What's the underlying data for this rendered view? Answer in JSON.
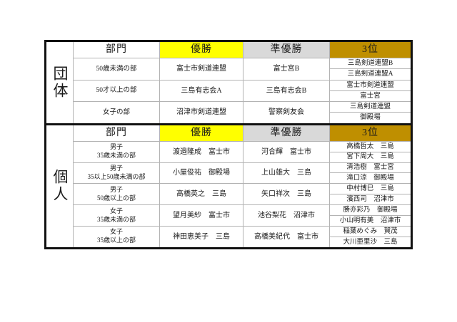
{
  "colors": {
    "winner_header_bg": "#ffff00",
    "runner_up_header_bg": "#d9d9d9",
    "third_header_bg": "#bf8f00",
    "grid_line": "#b3b3b3",
    "outer_border": "#111111",
    "page_bg": "#ffffff"
  },
  "headers": {
    "division": "部門",
    "winner": "優勝",
    "runner_up": "準優勝",
    "third": "3位"
  },
  "sections": {
    "team": {
      "label": "団体",
      "rows": [
        {
          "division": "50歳未満の部",
          "winner": "富士市剣道連盟",
          "runner_up": "富士宮B",
          "third": [
            "三島剣道連盟B",
            "三島剣道連盟A"
          ]
        },
        {
          "division": "50才以上の部",
          "winner": "三島有志会A",
          "runner_up": "三島有志会B",
          "third": [
            "富士市剣道連盟",
            "富士宮"
          ]
        },
        {
          "division": "女子の部",
          "winner": "沼津市剣道連盟",
          "runner_up": "警察剣友会",
          "third": [
            "三島剣道連盟",
            "御殿場"
          ]
        }
      ]
    },
    "individual": {
      "label": "個人",
      "rows": [
        {
          "division_line1": "男子",
          "division_line2": "35歳未満の部",
          "winner": "渡邉隆成　富士市",
          "runner_up": "河合輝　富士市",
          "third": [
            "高橋哲太　三島",
            "宮下周大　三島"
          ]
        },
        {
          "division_line1": "男子",
          "division_line2": "35以上50歳未満の部",
          "winner": "小屋俊祐　御殿場",
          "runner_up": "上山雄大　三島",
          "third": [
            "清浩樹　富士宮",
            "滝口涼　御殿場"
          ]
        },
        {
          "division_line1": "男子",
          "division_line2": "50歳以上の部",
          "winner": "高橋英之　三島",
          "runner_up": "矢口祥次　三島",
          "third": [
            "中村博巳　三島",
            "濱西司　沼津市"
          ]
        },
        {
          "division_line1": "女子",
          "division_line2": "35歳未満の部",
          "winner": "望月美紗　富士市",
          "runner_up": "池谷梨花　沼津市",
          "third": [
            "勝亦彩乃　御殿場",
            "小山明有美　沼津市"
          ]
        },
        {
          "division_line1": "女子",
          "division_line2": "35歳以上の部",
          "winner": "神田恵美子　三島",
          "runner_up": "高橋美紀代　富士市",
          "third": [
            "稲葉めぐみ　賀茂",
            "大川亜里沙　三島"
          ]
        }
      ]
    }
  }
}
